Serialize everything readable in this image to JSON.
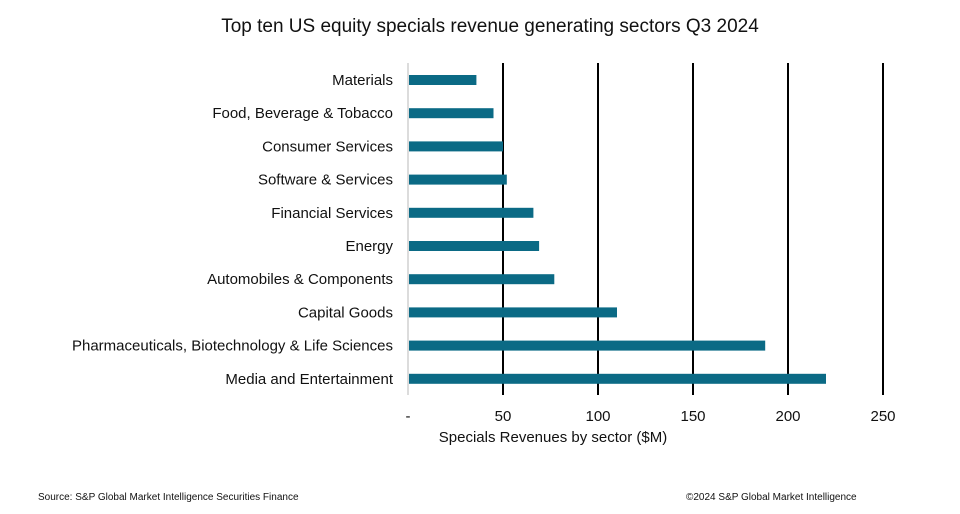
{
  "chart_data": {
    "type": "bar",
    "orientation": "horizontal",
    "title": "Top ten US equity specials revenue generating sectors Q3 2024",
    "categories": [
      "Materials",
      "Food, Beverage & Tobacco",
      "Consumer Services",
      "Software & Services",
      "Financial Services",
      "Energy",
      "Automobiles & Components",
      "Capital Goods",
      "Pharmaceuticals, Biotechnology & Life Sciences",
      "Media and Entertainment"
    ],
    "values": [
      36,
      45,
      50,
      52,
      66,
      69,
      77,
      110,
      188,
      220
    ],
    "xlabel": "Specials Revenues by sector ($M)",
    "ylabel": "",
    "xlim": [
      0,
      250
    ],
    "xticks": [
      "-",
      "50",
      "100",
      "150",
      "200",
      "250"
    ],
    "tick_values": [
      0,
      50,
      100,
      150,
      200,
      250
    ],
    "grid": "vertical",
    "bar_color": "#0b6a85"
  },
  "footer": {
    "source": "Source: S&P Global Market Intelligence Securities Finance",
    "copyright": "©2024 S&P Global Market Intelligence"
  }
}
